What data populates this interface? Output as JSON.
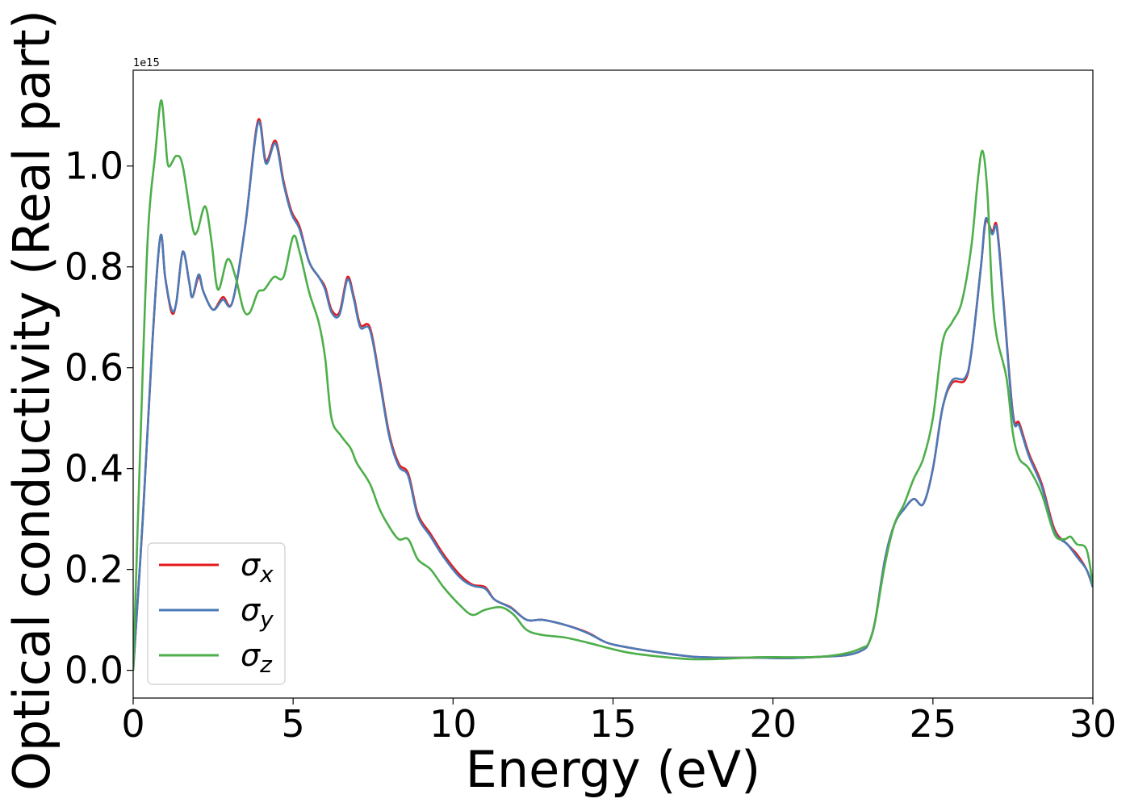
{
  "chart_data": {
    "type": "line",
    "xlabel": "Energy (eV)",
    "ylabel": "Optical conductivity (Real part)",
    "y_offset_label": "1e15",
    "xlim": [
      0,
      30
    ],
    "ylim": [
      -0.055,
      1.19
    ],
    "x_ticks": [
      0,
      5,
      10,
      15,
      20,
      25,
      30
    ],
    "x_tick_labels": [
      "0",
      "5",
      "10",
      "15",
      "20",
      "25",
      "30"
    ],
    "y_ticks": [
      0.0,
      0.2,
      0.4,
      0.6,
      0.8,
      1.0
    ],
    "y_tick_labels": [
      "0.0",
      "0.2",
      "0.4",
      "0.6",
      "0.8",
      "1.0"
    ],
    "grid": false,
    "legend_position": "lower-left",
    "series": [
      {
        "name": "σx",
        "sub": "x",
        "color": "#e41a1c",
        "points": [
          [
            0,
            0
          ],
          [
            0.3,
            0.3
          ],
          [
            0.6,
            0.65
          ],
          [
            0.85,
            0.86
          ],
          [
            1.0,
            0.78
          ],
          [
            1.2,
            0.71
          ],
          [
            1.35,
            0.73
          ],
          [
            1.55,
            0.83
          ],
          [
            1.75,
            0.77
          ],
          [
            1.85,
            0.74
          ],
          [
            2.05,
            0.78
          ],
          [
            2.2,
            0.75
          ],
          [
            2.5,
            0.715
          ],
          [
            2.8,
            0.74
          ],
          [
            3.1,
            0.73
          ],
          [
            3.5,
            0.88
          ],
          [
            3.9,
            1.09
          ],
          [
            4.15,
            1.01
          ],
          [
            4.45,
            1.05
          ],
          [
            4.7,
            0.97
          ],
          [
            4.95,
            0.91
          ],
          [
            5.2,
            0.88
          ],
          [
            5.5,
            0.81
          ],
          [
            5.8,
            0.78
          ],
          [
            6.0,
            0.76
          ],
          [
            6.2,
            0.715
          ],
          [
            6.45,
            0.71
          ],
          [
            6.7,
            0.78
          ],
          [
            6.9,
            0.74
          ],
          [
            7.1,
            0.685
          ],
          [
            7.4,
            0.68
          ],
          [
            7.7,
            0.58
          ],
          [
            8.0,
            0.47
          ],
          [
            8.3,
            0.41
          ],
          [
            8.6,
            0.39
          ],
          [
            8.9,
            0.31
          ],
          [
            9.3,
            0.27
          ],
          [
            9.7,
            0.23
          ],
          [
            10.2,
            0.19
          ],
          [
            10.6,
            0.17
          ],
          [
            11.0,
            0.165
          ],
          [
            11.3,
            0.14
          ],
          [
            11.8,
            0.125
          ],
          [
            12.3,
            0.1
          ],
          [
            12.8,
            0.1
          ],
          [
            13.5,
            0.09
          ],
          [
            14.2,
            0.075
          ],
          [
            14.8,
            0.055
          ],
          [
            15.5,
            0.045
          ],
          [
            16.5,
            0.035
          ],
          [
            17.5,
            0.027
          ],
          [
            18.5,
            0.025
          ],
          [
            19.5,
            0.025
          ],
          [
            20.5,
            0.024
          ],
          [
            21.5,
            0.027
          ],
          [
            22.3,
            0.03
          ],
          [
            22.8,
            0.04
          ],
          [
            23.0,
            0.055
          ],
          [
            23.2,
            0.1
          ],
          [
            23.5,
            0.22
          ],
          [
            23.8,
            0.29
          ],
          [
            24.1,
            0.32
          ],
          [
            24.4,
            0.34
          ],
          [
            24.7,
            0.33
          ],
          [
            25.0,
            0.4
          ],
          [
            25.3,
            0.52
          ],
          [
            25.6,
            0.57
          ],
          [
            26.0,
            0.575
          ],
          [
            26.2,
            0.63
          ],
          [
            26.5,
            0.8
          ],
          [
            26.65,
            0.89
          ],
          [
            26.85,
            0.87
          ],
          [
            27.0,
            0.88
          ],
          [
            27.2,
            0.74
          ],
          [
            27.5,
            0.51
          ],
          [
            27.7,
            0.49
          ],
          [
            28.0,
            0.43
          ],
          [
            28.4,
            0.37
          ],
          [
            28.8,
            0.28
          ],
          [
            29.2,
            0.25
          ],
          [
            29.5,
            0.23
          ],
          [
            29.8,
            0.2
          ],
          [
            30,
            0.165
          ]
        ]
      },
      {
        "name": "σy",
        "sub": "y",
        "color": "#4a7bb7",
        "points": [
          [
            0,
            0
          ],
          [
            0.3,
            0.3
          ],
          [
            0.6,
            0.65
          ],
          [
            0.85,
            0.86
          ],
          [
            1.0,
            0.78
          ],
          [
            1.2,
            0.715
          ],
          [
            1.35,
            0.73
          ],
          [
            1.55,
            0.83
          ],
          [
            1.75,
            0.77
          ],
          [
            1.85,
            0.74
          ],
          [
            2.05,
            0.785
          ],
          [
            2.2,
            0.75
          ],
          [
            2.5,
            0.715
          ],
          [
            2.8,
            0.735
          ],
          [
            3.1,
            0.73
          ],
          [
            3.5,
            0.88
          ],
          [
            3.9,
            1.085
          ],
          [
            4.15,
            1.005
          ],
          [
            4.45,
            1.045
          ],
          [
            4.7,
            0.965
          ],
          [
            4.95,
            0.905
          ],
          [
            5.2,
            0.875
          ],
          [
            5.5,
            0.81
          ],
          [
            5.8,
            0.78
          ],
          [
            6.0,
            0.755
          ],
          [
            6.2,
            0.71
          ],
          [
            6.45,
            0.705
          ],
          [
            6.7,
            0.775
          ],
          [
            6.9,
            0.735
          ],
          [
            7.1,
            0.68
          ],
          [
            7.4,
            0.675
          ],
          [
            7.7,
            0.575
          ],
          [
            8.0,
            0.465
          ],
          [
            8.3,
            0.405
          ],
          [
            8.6,
            0.385
          ],
          [
            8.9,
            0.305
          ],
          [
            9.3,
            0.265
          ],
          [
            9.7,
            0.225
          ],
          [
            10.2,
            0.185
          ],
          [
            10.6,
            0.168
          ],
          [
            11.0,
            0.162
          ],
          [
            11.3,
            0.14
          ],
          [
            11.8,
            0.124
          ],
          [
            12.3,
            0.1
          ],
          [
            12.8,
            0.1
          ],
          [
            13.5,
            0.09
          ],
          [
            14.2,
            0.074
          ],
          [
            14.8,
            0.055
          ],
          [
            15.5,
            0.045
          ],
          [
            16.5,
            0.035
          ],
          [
            17.5,
            0.027
          ],
          [
            18.5,
            0.025
          ],
          [
            19.5,
            0.025
          ],
          [
            20.5,
            0.024
          ],
          [
            21.5,
            0.027
          ],
          [
            22.3,
            0.03
          ],
          [
            22.8,
            0.04
          ],
          [
            23.0,
            0.055
          ],
          [
            23.2,
            0.1
          ],
          [
            23.5,
            0.22
          ],
          [
            23.8,
            0.29
          ],
          [
            24.1,
            0.32
          ],
          [
            24.4,
            0.34
          ],
          [
            24.7,
            0.33
          ],
          [
            25.0,
            0.4
          ],
          [
            25.3,
            0.52
          ],
          [
            25.6,
            0.575
          ],
          [
            26.0,
            0.58
          ],
          [
            26.2,
            0.63
          ],
          [
            26.5,
            0.8
          ],
          [
            26.65,
            0.895
          ],
          [
            26.85,
            0.865
          ],
          [
            27.0,
            0.875
          ],
          [
            27.2,
            0.735
          ],
          [
            27.5,
            0.505
          ],
          [
            27.7,
            0.485
          ],
          [
            28.0,
            0.425
          ],
          [
            28.4,
            0.365
          ],
          [
            28.8,
            0.275
          ],
          [
            29.2,
            0.25
          ],
          [
            29.5,
            0.225
          ],
          [
            29.8,
            0.2
          ],
          [
            30,
            0.165
          ]
        ]
      },
      {
        "name": "σz",
        "sub": "z",
        "color": "#4daf4a",
        "points": [
          [
            0,
            0
          ],
          [
            0.2,
            0.4
          ],
          [
            0.45,
            0.85
          ],
          [
            0.7,
            1.03
          ],
          [
            0.87,
            1.13
          ],
          [
            1.0,
            1.06
          ],
          [
            1.1,
            1.0
          ],
          [
            1.35,
            1.02
          ],
          [
            1.55,
            1.0
          ],
          [
            1.85,
            0.88
          ],
          [
            2.0,
            0.87
          ],
          [
            2.25,
            0.92
          ],
          [
            2.45,
            0.85
          ],
          [
            2.65,
            0.755
          ],
          [
            2.95,
            0.815
          ],
          [
            3.2,
            0.78
          ],
          [
            3.45,
            0.715
          ],
          [
            3.65,
            0.71
          ],
          [
            3.9,
            0.75
          ],
          [
            4.1,
            0.755
          ],
          [
            4.4,
            0.78
          ],
          [
            4.7,
            0.78
          ],
          [
            5.0,
            0.86
          ],
          [
            5.2,
            0.83
          ],
          [
            5.5,
            0.75
          ],
          [
            5.8,
            0.69
          ],
          [
            6.0,
            0.62
          ],
          [
            6.2,
            0.5
          ],
          [
            6.5,
            0.465
          ],
          [
            6.8,
            0.44
          ],
          [
            7.0,
            0.41
          ],
          [
            7.4,
            0.37
          ],
          [
            7.7,
            0.32
          ],
          [
            8.0,
            0.285
          ],
          [
            8.3,
            0.26
          ],
          [
            8.6,
            0.26
          ],
          [
            8.9,
            0.22
          ],
          [
            9.3,
            0.2
          ],
          [
            9.7,
            0.165
          ],
          [
            10.2,
            0.13
          ],
          [
            10.6,
            0.11
          ],
          [
            11.0,
            0.12
          ],
          [
            11.5,
            0.125
          ],
          [
            11.9,
            0.11
          ],
          [
            12.3,
            0.08
          ],
          [
            12.8,
            0.07
          ],
          [
            13.5,
            0.065
          ],
          [
            14.2,
            0.055
          ],
          [
            14.8,
            0.045
          ],
          [
            15.5,
            0.035
          ],
          [
            16.5,
            0.027
          ],
          [
            17.5,
            0.022
          ],
          [
            18.5,
            0.023
          ],
          [
            19.5,
            0.026
          ],
          [
            20.5,
            0.026
          ],
          [
            21.5,
            0.027
          ],
          [
            22.3,
            0.034
          ],
          [
            22.8,
            0.045
          ],
          [
            23.0,
            0.055
          ],
          [
            23.2,
            0.1
          ],
          [
            23.5,
            0.21
          ],
          [
            23.8,
            0.29
          ],
          [
            24.1,
            0.33
          ],
          [
            24.4,
            0.38
          ],
          [
            24.7,
            0.42
          ],
          [
            25.0,
            0.5
          ],
          [
            25.3,
            0.65
          ],
          [
            25.6,
            0.69
          ],
          [
            25.9,
            0.73
          ],
          [
            26.2,
            0.84
          ],
          [
            26.4,
            0.97
          ],
          [
            26.55,
            1.03
          ],
          [
            26.7,
            0.95
          ],
          [
            26.85,
            0.75
          ],
          [
            27.0,
            0.66
          ],
          [
            27.3,
            0.58
          ],
          [
            27.5,
            0.47
          ],
          [
            27.7,
            0.42
          ],
          [
            28.0,
            0.4
          ],
          [
            28.4,
            0.35
          ],
          [
            28.8,
            0.27
          ],
          [
            29.1,
            0.26
          ],
          [
            29.3,
            0.265
          ],
          [
            29.5,
            0.25
          ],
          [
            29.8,
            0.24
          ],
          [
            30,
            0.17
          ]
        ]
      }
    ]
  }
}
